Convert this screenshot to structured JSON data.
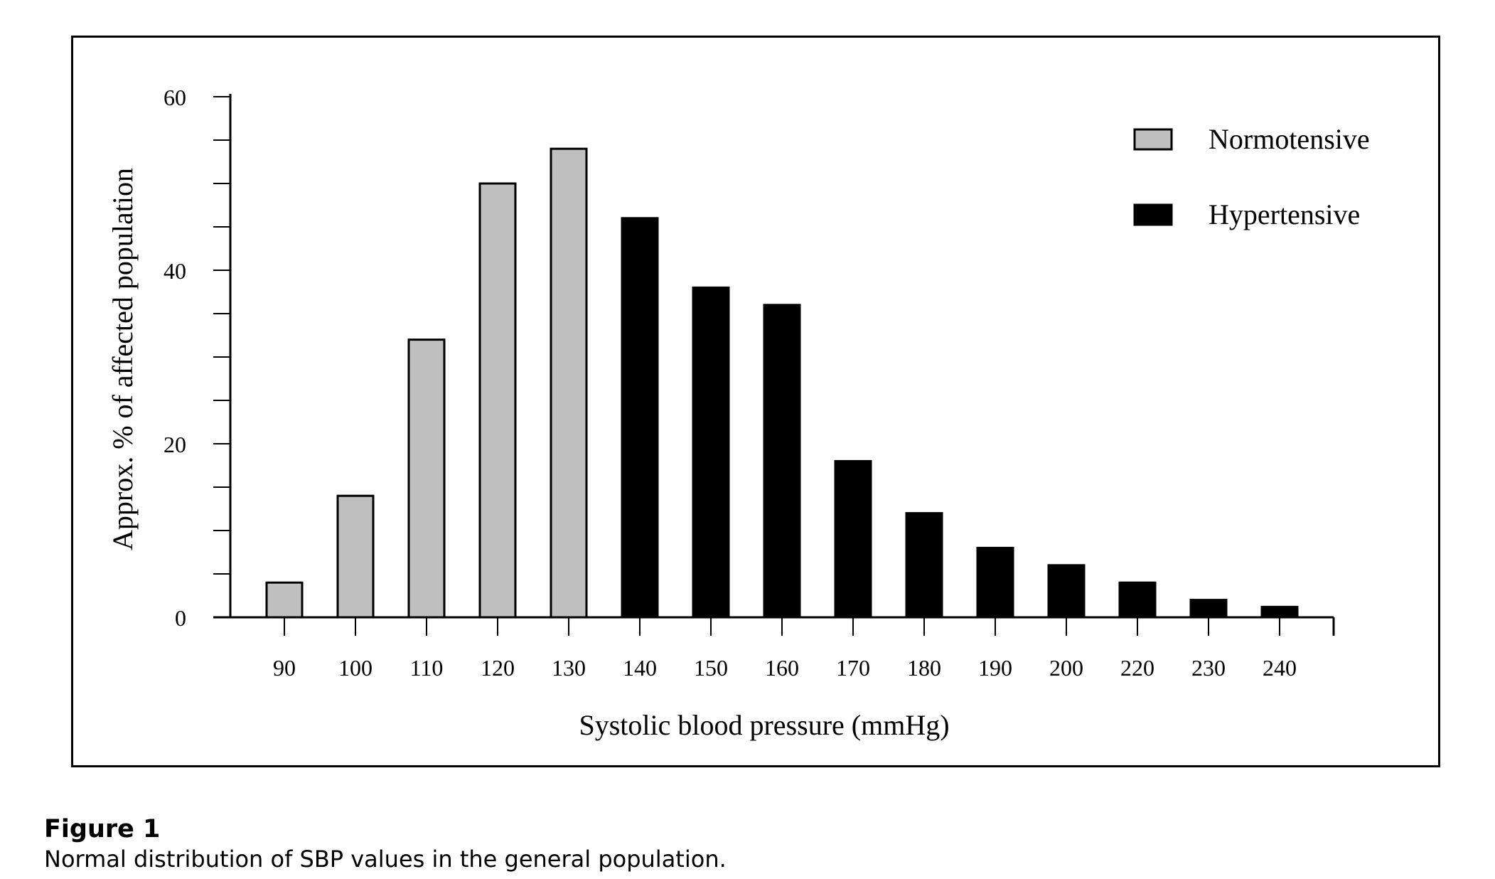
{
  "chart_data": {
    "type": "bar",
    "title": "",
    "xlabel": "Systolic blood pressure (mmHg)",
    "ylabel": "Approx. % of affected population",
    "ylim": [
      0,
      60
    ],
    "y_tick_labels": [
      "0",
      "20",
      "40",
      "60"
    ],
    "categories": [
      "90",
      "100",
      "110",
      "120",
      "130",
      "140",
      "150",
      "160",
      "170",
      "180",
      "190",
      "200",
      "220",
      "230",
      "240"
    ],
    "values": [
      4,
      14,
      32,
      50,
      54,
      46,
      38,
      36,
      18,
      12,
      8,
      6,
      4,
      2,
      1.2
    ],
    "groups": [
      "Normotensive",
      "Normotensive",
      "Normotensive",
      "Normotensive",
      "Normotensive",
      "Hypertensive",
      "Hypertensive",
      "Hypertensive",
      "Hypertensive",
      "Hypertensive",
      "Hypertensive",
      "Hypertensive",
      "Hypertensive",
      "Hypertensive",
      "Hypertensive"
    ],
    "legend": {
      "placement": "top-right",
      "entries": [
        {
          "label": "Normotensive",
          "color": "#c0c0c0"
        },
        {
          "label": "Hypertensive",
          "color": "#000000"
        }
      ]
    },
    "grid": false
  },
  "caption": {
    "title": "Figure 1",
    "text": "Normal distribution of SBP values in the general population."
  }
}
